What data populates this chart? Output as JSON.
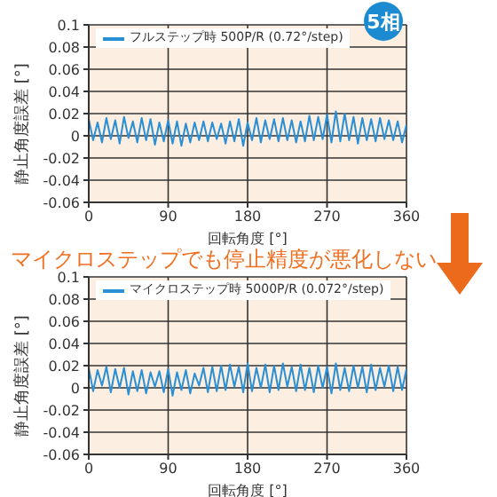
{
  "chart_data": [
    {
      "type": "line",
      "xlabel": "回転角度 [°]",
      "ylabel": "静止角度誤差 [°]",
      "xlim": [
        0,
        360
      ],
      "xticks": [
        0,
        90,
        180,
        270,
        360
      ],
      "ylim": [
        -0.06,
        0.1
      ],
      "yticks": [
        -0.06,
        -0.04,
        -0.02,
        0,
        0.02,
        0.04,
        0.06,
        0.08,
        0.1
      ],
      "grid": true,
      "legend": "top left",
      "marker": "none",
      "line_style": "solid",
      "annotations": [
        "5相",
        "マイクロステップでも停止精度が悪化しない"
      ],
      "series": [
        {
          "name": "フルステップ時 500P/R (0.72°/step)",
          "color": "#2a8fd4",
          "x": [
            0,
            5,
            10,
            15,
            20,
            25,
            30,
            35,
            40,
            45,
            50,
            55,
            60,
            65,
            70,
            75,
            80,
            85,
            90,
            95,
            100,
            105,
            110,
            115,
            120,
            125,
            130,
            135,
            140,
            145,
            150,
            155,
            160,
            165,
            170,
            175,
            180,
            185,
            190,
            195,
            200,
            205,
            210,
            215,
            220,
            225,
            230,
            235,
            240,
            245,
            250,
            255,
            260,
            265,
            270,
            275,
            280,
            285,
            290,
            295,
            300,
            305,
            310,
            315,
            320,
            325,
            330,
            335,
            340,
            345,
            350,
            355,
            360
          ],
          "values": [
            0.015,
            -0.004,
            0.012,
            -0.006,
            0.016,
            -0.003,
            0.014,
            -0.007,
            0.017,
            -0.002,
            0.013,
            -0.006,
            0.016,
            -0.004,
            0.015,
            -0.008,
            0.012,
            -0.005,
            0.014,
            -0.007,
            0.013,
            -0.009,
            0.011,
            -0.006,
            0.012,
            -0.004,
            0.013,
            -0.005,
            0.012,
            -0.003,
            0.011,
            -0.007,
            0.013,
            -0.005,
            0.015,
            -0.009,
            0.012,
            -0.004,
            0.016,
            -0.006,
            0.014,
            -0.003,
            0.015,
            -0.005,
            0.016,
            -0.004,
            0.014,
            -0.006,
            0.013,
            -0.005,
            0.018,
            -0.004,
            0.017,
            -0.003,
            0.019,
            -0.006,
            0.022,
            -0.005,
            0.02,
            -0.004,
            0.017,
            -0.007,
            0.016,
            -0.004,
            0.015,
            -0.005,
            0.016,
            -0.003,
            0.014,
            -0.004,
            0.013,
            -0.006,
            0.01
          ]
        }
      ]
    },
    {
      "type": "line",
      "xlabel": "回転角度 [°]",
      "ylabel": "静止角度誤差 [°]",
      "xlim": [
        0,
        360
      ],
      "xticks": [
        0,
        90,
        180,
        270,
        360
      ],
      "ylim": [
        -0.06,
        0.1
      ],
      "yticks": [
        -0.06,
        -0.04,
        -0.02,
        0,
        0.02,
        0.04,
        0.06,
        0.08,
        0.1
      ],
      "grid": true,
      "legend": "top left",
      "marker": "none",
      "line_style": "solid",
      "series": [
        {
          "name": "マイクロステップ時 5000P/R (0.072°/step)",
          "color": "#2a8fd4",
          "x": [
            0,
            5,
            10,
            15,
            20,
            25,
            30,
            35,
            40,
            45,
            50,
            55,
            60,
            65,
            70,
            75,
            80,
            85,
            90,
            95,
            100,
            105,
            110,
            115,
            120,
            125,
            130,
            135,
            140,
            145,
            150,
            155,
            160,
            165,
            170,
            175,
            180,
            185,
            190,
            195,
            200,
            205,
            210,
            215,
            220,
            225,
            230,
            235,
            240,
            245,
            250,
            255,
            260,
            265,
            270,
            275,
            280,
            285,
            290,
            295,
            300,
            305,
            310,
            315,
            320,
            325,
            330,
            335,
            340,
            345,
            350,
            355,
            360
          ],
          "values": [
            0.018,
            -0.003,
            0.016,
            0.002,
            0.019,
            -0.004,
            0.017,
            0.0,
            0.018,
            -0.006,
            0.015,
            -0.003,
            0.016,
            -0.005,
            0.014,
            0.001,
            0.015,
            -0.004,
            0.017,
            -0.007,
            0.014,
            -0.002,
            0.016,
            -0.005,
            0.013,
            0.002,
            0.018,
            -0.004,
            0.019,
            -0.003,
            0.02,
            -0.002,
            0.021,
            0.001,
            0.019,
            -0.004,
            0.022,
            -0.003,
            0.018,
            0.0,
            0.021,
            -0.004,
            0.02,
            -0.002,
            0.022,
            0.001,
            0.019,
            -0.003,
            0.021,
            -0.002,
            0.018,
            -0.004,
            0.02,
            0.0,
            0.019,
            -0.005,
            0.022,
            -0.002,
            0.018,
            -0.003,
            0.02,
            0.0,
            0.019,
            -0.004,
            0.021,
            -0.002,
            0.018,
            0.001,
            0.02,
            -0.003,
            0.019,
            -0.002,
            0.017
          ]
        }
      ]
    }
  ]
}
